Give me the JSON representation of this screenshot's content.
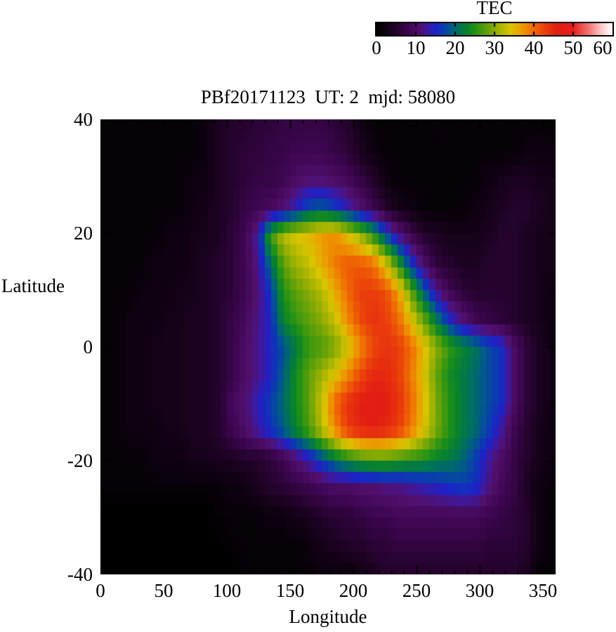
{
  "figure": {
    "title": "PBf20171123  UT: 2  mjd: 58080",
    "background": "#ffffff",
    "text_color": "#000000"
  },
  "colorbar": {
    "title": "TEC",
    "ticks": [
      0,
      10,
      20,
      30,
      40,
      50,
      60
    ],
    "min": 0,
    "max": 60
  },
  "axes": {
    "x": {
      "title": "Longitude",
      "ticks": [
        0,
        50,
        100,
        150,
        200,
        250,
        300,
        350
      ],
      "min": 0,
      "max": 360,
      "minor_step": 10,
      "major_step": 50
    },
    "y": {
      "title": "Latitude",
      "ticks": [
        40,
        20,
        0,
        -20,
        -40
      ],
      "min": -40,
      "max": 40,
      "minor_step": 10,
      "major_step": 20
    }
  },
  "chart_data": {
    "type": "heatmap",
    "title": "PBf20171123  UT: 2  mjd: 58080",
    "xlabel": "Longitude",
    "ylabel": "Latitude",
    "value_label": "TEC",
    "xlim": [
      0,
      360
    ],
    "ylim": [
      -40,
      40
    ],
    "vlim": [
      0,
      60
    ],
    "grid": false,
    "lons": [
      0,
      10,
      20,
      30,
      40,
      50,
      60,
      70,
      80,
      90,
      100,
      110,
      120,
      130,
      140,
      150,
      160,
      170,
      180,
      190,
      200,
      210,
      220,
      230,
      240,
      250,
      260,
      270,
      280,
      290,
      300,
      310,
      320,
      330,
      340,
      350
    ],
    "lats": [
      40,
      35,
      30,
      25,
      20,
      15,
      10,
      5,
      0,
      -5,
      -10,
      -15,
      -20,
      -25,
      -30,
      -35,
      -40
    ],
    "values": [
      [
        1,
        1,
        1,
        1,
        1,
        1,
        1,
        1,
        2,
        4,
        5,
        5,
        6,
        6,
        7,
        7,
        7,
        7,
        6,
        5,
        3,
        1,
        1,
        1,
        1,
        1,
        1,
        1,
        1,
        1,
        1,
        1,
        1,
        1,
        1,
        1
      ],
      [
        1,
        1,
        1,
        1,
        1,
        1,
        1,
        1,
        2,
        4,
        5,
        6,
        6,
        7,
        7,
        8,
        8,
        8,
        7,
        6,
        4,
        2,
        1,
        1,
        1,
        1,
        1,
        1,
        1,
        1,
        1,
        1,
        1,
        2,
        2,
        2
      ],
      [
        1,
        1,
        1,
        1,
        1,
        1,
        1,
        2,
        2,
        4,
        5,
        6,
        7,
        7,
        8,
        10,
        11,
        11,
        10,
        9,
        7,
        5,
        2,
        1,
        1,
        1,
        1,
        1,
        1,
        1,
        2,
        3,
        4,
        4,
        3,
        3
      ],
      [
        1,
        1,
        1,
        1,
        1,
        1,
        1,
        2,
        3,
        4,
        5,
        7,
        8,
        9,
        11,
        14,
        18,
        19,
        17,
        14,
        11,
        8,
        5,
        3,
        2,
        1,
        1,
        1,
        1,
        2,
        3,
        4,
        5,
        5,
        4,
        3
      ],
      [
        1,
        1,
        1,
        1,
        1,
        2,
        2,
        3,
        3,
        4,
        6,
        8,
        13,
        26,
        32,
        34,
        35,
        37,
        38,
        35,
        31,
        26,
        18,
        12,
        8,
        5,
        4,
        3,
        3,
        3,
        4,
        5,
        5,
        4,
        3,
        3
      ],
      [
        1,
        1,
        1,
        1,
        2,
        2,
        2,
        3,
        4,
        5,
        6,
        8,
        12,
        20,
        28,
        31,
        33,
        36,
        39,
        41,
        41,
        40,
        34,
        25,
        16,
        10,
        6,
        5,
        4,
        4,
        5,
        5,
        5,
        4,
        3,
        3
      ],
      [
        1,
        1,
        1,
        2,
        2,
        2,
        3,
        3,
        4,
        5,
        6,
        8,
        11,
        16,
        25,
        28,
        30,
        32,
        36,
        40,
        43,
        43,
        42,
        37,
        28,
        19,
        12,
        8,
        6,
        5,
        5,
        5,
        5,
        4,
        3,
        2
      ],
      [
        1,
        1,
        2,
        2,
        2,
        3,
        3,
        4,
        4,
        5,
        7,
        9,
        12,
        15,
        23,
        26,
        28,
        30,
        33,
        38,
        42,
        44,
        43,
        40,
        34,
        28,
        21,
        15,
        11,
        8,
        7,
        6,
        5,
        4,
        3,
        2
      ],
      [
        1,
        1,
        2,
        2,
        3,
        3,
        3,
        4,
        4,
        5,
        7,
        10,
        12,
        15,
        18,
        22,
        26,
        27,
        29,
        33,
        38,
        42,
        44,
        43,
        40,
        35,
        30,
        26,
        23,
        21,
        18,
        16,
        10,
        6,
        4,
        2
      ],
      [
        1,
        1,
        2,
        2,
        3,
        3,
        3,
        4,
        4,
        5,
        7,
        10,
        12,
        15,
        19,
        24,
        28,
        31,
        34,
        38,
        42,
        45,
        45,
        43,
        39,
        34,
        28,
        24,
        22,
        20,
        18,
        16,
        10,
        6,
        4,
        2
      ],
      [
        1,
        1,
        2,
        2,
        3,
        3,
        3,
        4,
        4,
        5,
        9,
        11,
        14,
        17,
        20,
        24,
        28,
        33,
        40,
        44,
        46,
        47,
        46,
        44,
        40,
        35,
        29,
        25,
        22,
        20,
        18,
        16,
        10,
        6,
        4,
        2
      ],
      [
        1,
        1,
        2,
        2,
        2,
        3,
        3,
        4,
        4,
        5,
        8,
        10,
        13,
        16,
        19,
        23,
        27,
        32,
        38,
        43,
        45,
        46,
        45,
        43,
        39,
        34,
        29,
        25,
        22,
        20,
        17,
        13,
        8,
        5,
        3,
        2
      ],
      [
        1,
        1,
        1,
        1,
        2,
        2,
        2,
        3,
        3,
        4,
        4,
        5,
        5,
        6,
        8,
        11,
        14,
        18,
        22,
        25,
        27,
        28,
        28,
        27,
        26,
        25,
        23,
        22,
        20,
        17,
        13,
        10,
        7,
        5,
        3,
        2
      ],
      [
        1,
        1,
        1,
        1,
        1,
        1,
        1,
        1,
        1,
        1,
        2,
        2,
        4,
        5,
        6,
        7,
        8,
        9,
        10,
        10,
        11,
        11,
        12,
        12,
        13,
        14,
        15,
        16,
        17,
        16,
        12,
        9,
        7,
        4,
        2,
        1
      ],
      [
        0,
        0,
        0,
        0,
        0,
        0,
        0,
        0,
        0,
        1,
        1,
        1,
        1,
        2,
        2,
        3,
        4,
        5,
        6,
        6,
        7,
        8,
        8,
        9,
        9,
        9,
        9,
        9,
        9,
        9,
        8,
        7,
        6,
        5,
        2,
        1
      ],
      [
        0,
        0,
        0,
        0,
        0,
        0,
        0,
        0,
        0,
        0,
        1,
        1,
        1,
        1,
        1,
        1,
        2,
        3,
        4,
        5,
        5,
        6,
        6,
        7,
        7,
        7,
        7,
        7,
        7,
        7,
        6,
        6,
        6,
        5,
        2,
        1
      ],
      [
        0,
        0,
        0,
        0,
        0,
        0,
        0,
        0,
        0,
        0,
        0,
        1,
        1,
        1,
        1,
        1,
        1,
        2,
        2,
        2,
        3,
        4,
        5,
        5,
        5,
        5,
        5,
        5,
        5,
        5,
        5,
        5,
        5,
        4,
        1,
        1
      ]
    ],
    "colormap_stops": [
      [
        0,
        0,
        0,
        0
      ],
      [
        4,
        28,
        2,
        33
      ],
      [
        8,
        62,
        6,
        82
      ],
      [
        11,
        82,
        16,
        110
      ],
      [
        13,
        60,
        25,
        160
      ],
      [
        15,
        28,
        34,
        200
      ],
      [
        17,
        10,
        60,
        175
      ],
      [
        19,
        0,
        92,
        135
      ],
      [
        21,
        0,
        115,
        85
      ],
      [
        23,
        10,
        130,
        45
      ],
      [
        25,
        30,
        145,
        22
      ],
      [
        28,
        95,
        160,
        10
      ],
      [
        31,
        160,
        178,
        2
      ],
      [
        34,
        216,
        197,
        0
      ],
      [
        36,
        232,
        170,
        0
      ],
      [
        38,
        238,
        140,
        0
      ],
      [
        40,
        240,
        105,
        4
      ],
      [
        43,
        234,
        60,
        12
      ],
      [
        46,
        226,
        30,
        18
      ],
      [
        50,
        232,
        28,
        28
      ],
      [
        54,
        242,
        115,
        115
      ],
      [
        57,
        250,
        195,
        195
      ],
      [
        60,
        255,
        255,
        255
      ]
    ],
    "legend": "colorbar top-right, horizontal, range 0-60"
  }
}
